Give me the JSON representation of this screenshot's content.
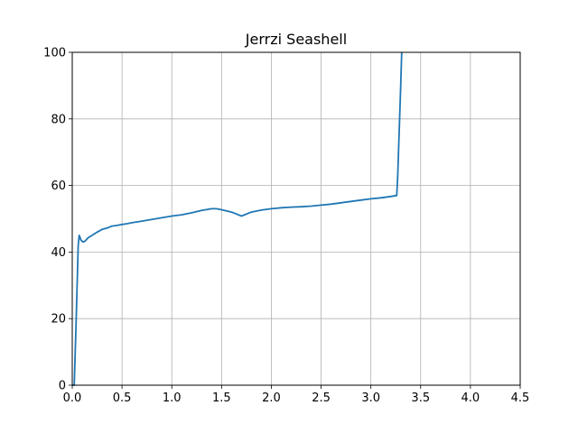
{
  "chart_data": {
    "type": "line",
    "title": "Jerrzi Seashell",
    "xlabel": "",
    "ylabel": "",
    "xlim": [
      0,
      4.5
    ],
    "ylim": [
      0,
      100
    ],
    "grid": true,
    "x_ticks": [
      "0.0",
      "0.5",
      "1.0",
      "1.5",
      "2.0",
      "2.5",
      "3.0",
      "3.5",
      "4.0",
      "4.5"
    ],
    "y_ticks": [
      "0",
      "20",
      "40",
      "60",
      "80",
      "100"
    ],
    "colors": {
      "line": "#1f77b4",
      "grid": "#b0b0b0",
      "axes": "#000000"
    },
    "series": [
      {
        "x": [
          0.0,
          0.02,
          0.04,
          0.06,
          0.07,
          0.09,
          0.11,
          0.13,
          0.16,
          0.2,
          0.25,
          0.3,
          0.35,
          0.4,
          0.45,
          0.5,
          0.55,
          0.6,
          0.7,
          0.8,
          0.9,
          1.0,
          1.1,
          1.2,
          1.3,
          1.4,
          1.45,
          1.5,
          1.6,
          1.7,
          1.8,
          1.9,
          2.0,
          2.1,
          2.2,
          2.3,
          2.4,
          2.5,
          2.6,
          2.7,
          2.8,
          2.9,
          3.0,
          3.1,
          3.2,
          3.26,
          3.27,
          3.3,
          3.31
        ],
        "y": [
          0,
          0,
          20,
          42,
          45,
          43.5,
          43,
          43.3,
          44.3,
          45,
          46,
          46.8,
          47.2,
          47.8,
          48,
          48.3,
          48.5,
          48.8,
          49.3,
          49.8,
          50.3,
          50.8,
          51.2,
          51.8,
          52.5,
          53,
          53,
          52.7,
          52,
          50.8,
          52,
          52.6,
          53,
          53.3,
          53.5,
          53.6,
          53.8,
          54.1,
          54.4,
          54.8,
          55.2,
          55.6,
          56,
          56.3,
          56.7,
          57,
          63,
          90,
          100
        ]
      }
    ]
  }
}
